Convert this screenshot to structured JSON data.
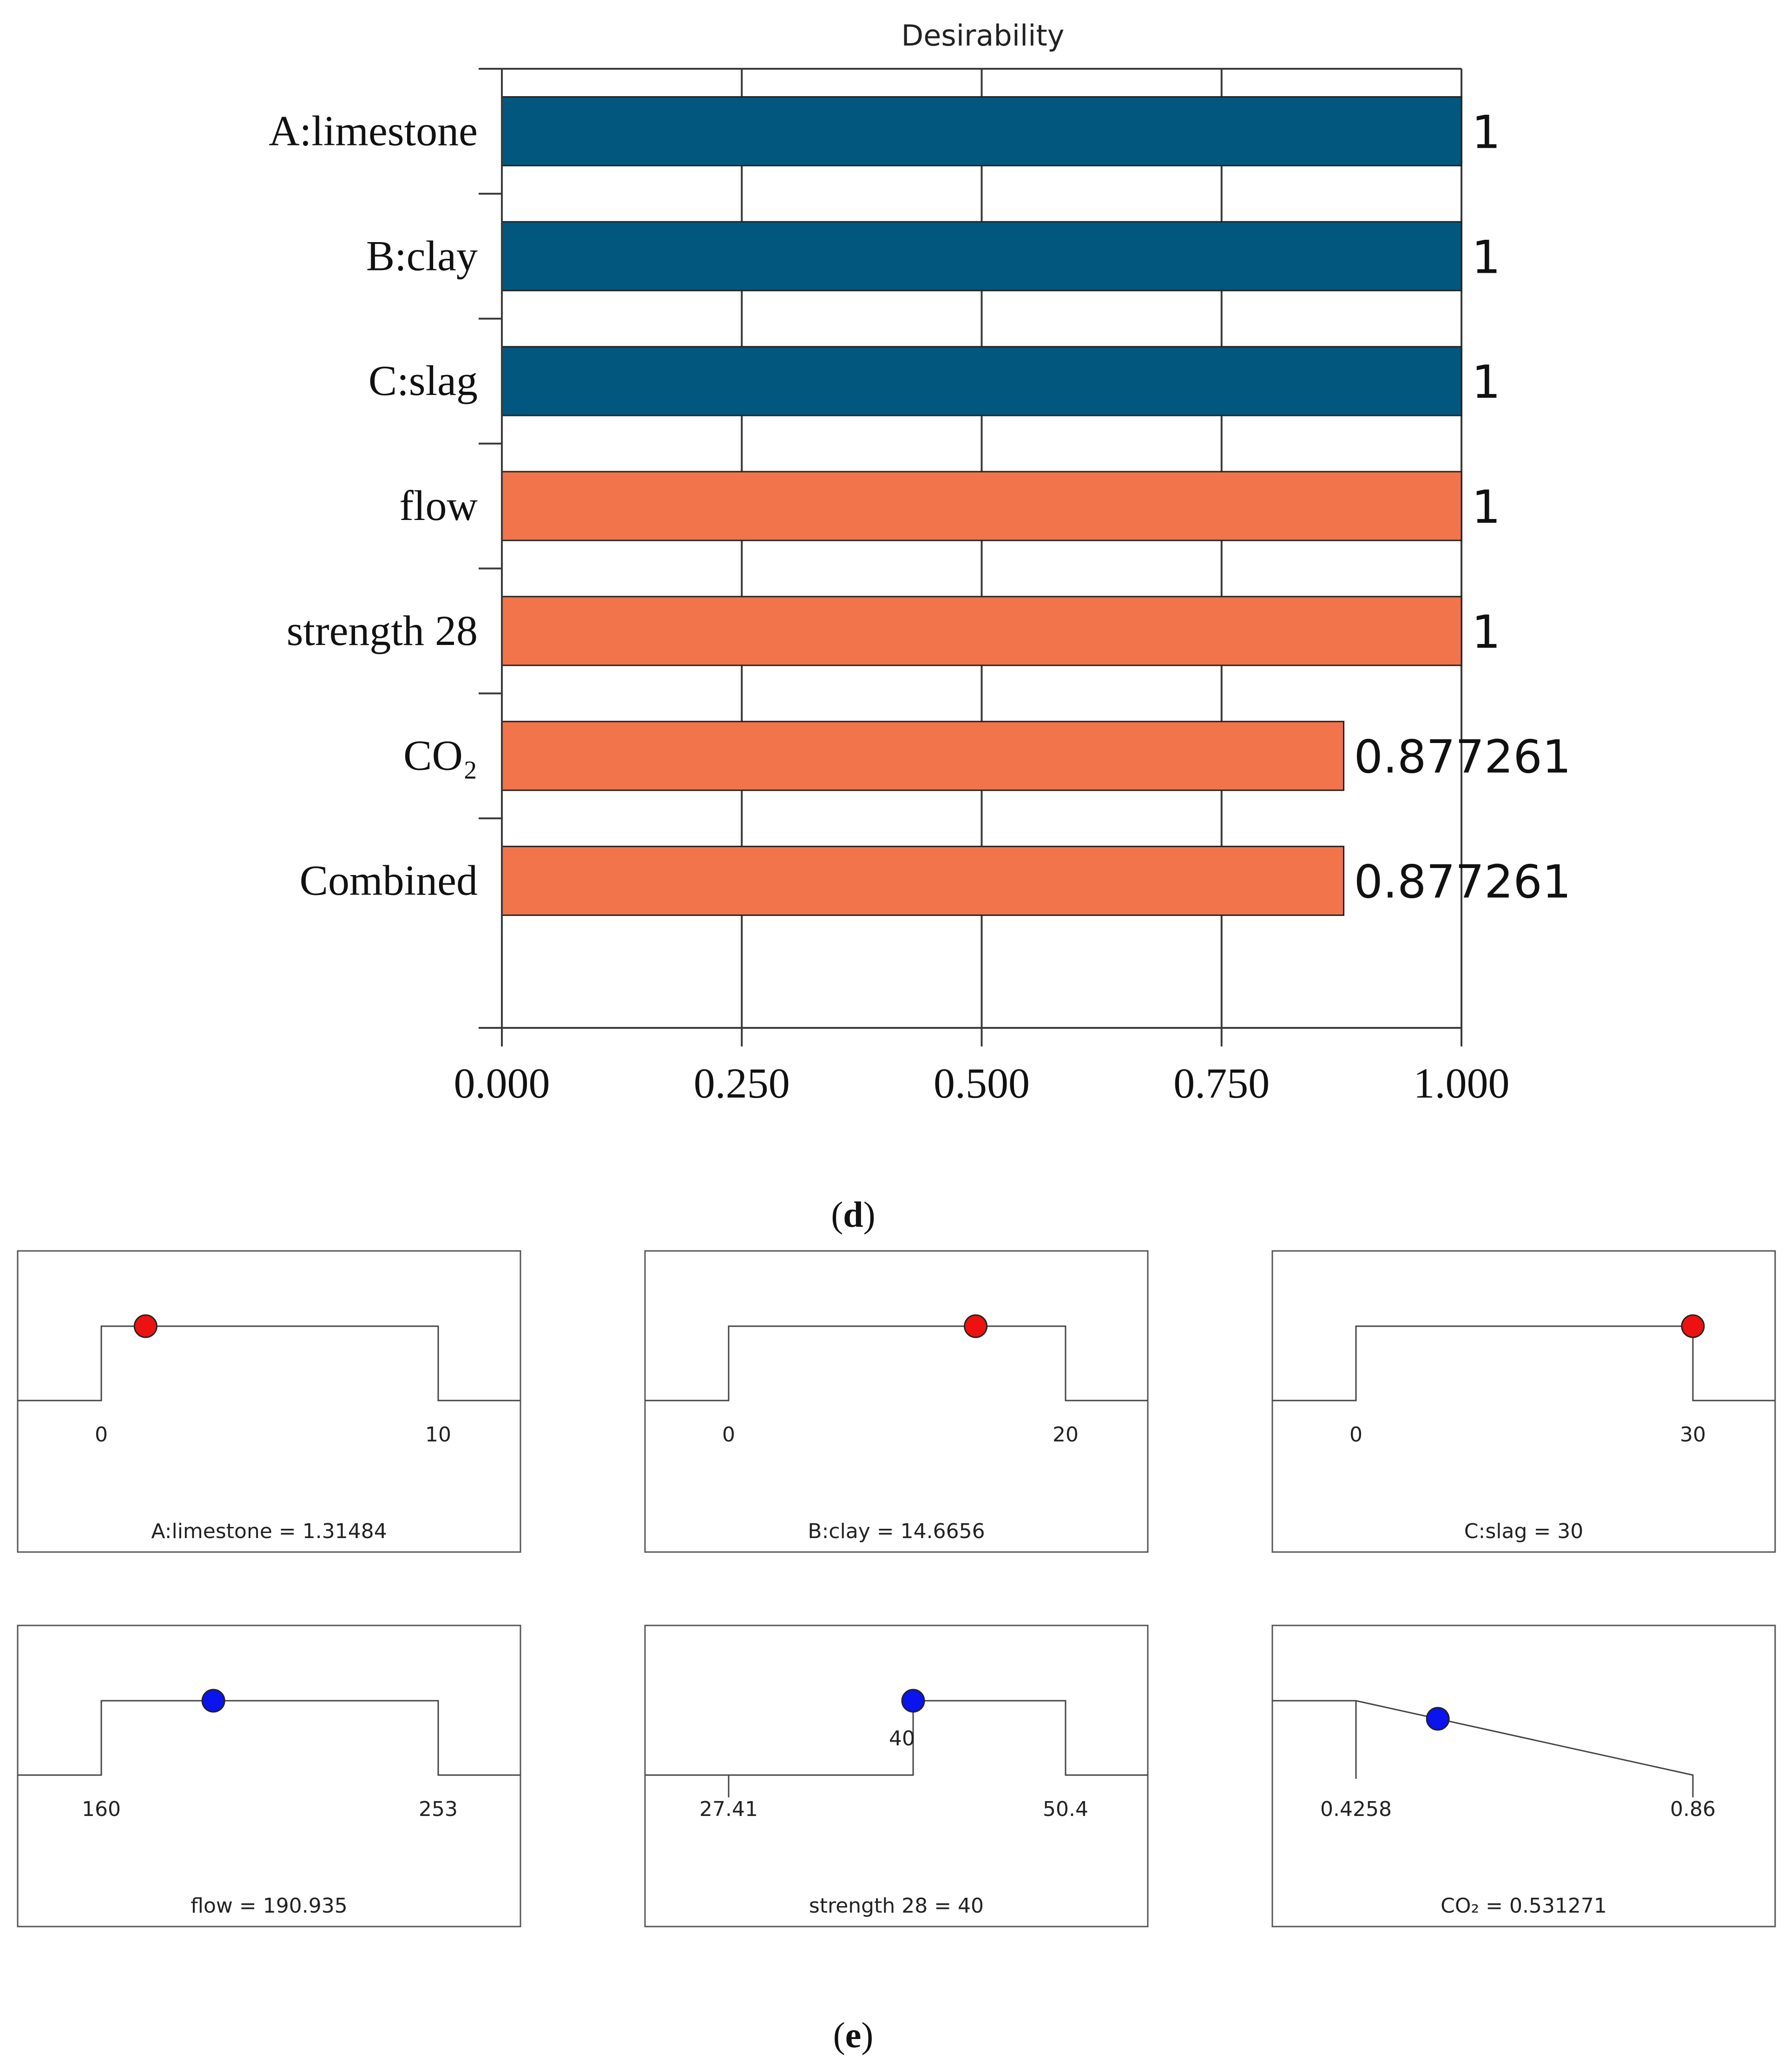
{
  "chart_data": [
    {
      "type": "bar",
      "orientation": "horizontal",
      "title": "Desirability",
      "categories": [
        "A:limestone",
        "B:clay",
        "C:slag",
        "flow",
        "strength 28",
        "CO₂",
        "Combined"
      ],
      "values": [
        1,
        1,
        1,
        1,
        1,
        0.877261,
        0.877261
      ],
      "value_labels": [
        "1",
        "1",
        "1",
        "1",
        "1",
        "0.877261",
        "0.877261"
      ],
      "bar_colors": [
        "#02577f",
        "#02577f",
        "#02577f",
        "#f2744a",
        "#f2744a",
        "#f2744a",
        "#f2744a"
      ],
      "xlim": [
        0,
        1
      ],
      "xticks": [
        "0.000",
        "0.250",
        "0.500",
        "0.750",
        "1.000"
      ],
      "grid": true,
      "panel_label": "(d)"
    },
    {
      "type": "line",
      "subtype": "desirability ramps",
      "panel_label": "(e)",
      "panels": [
        {
          "name": "A:limestone",
          "caption": "A:limestone = 1.31484",
          "kind": "range",
          "low": 0,
          "high": 10,
          "low_label": "0",
          "high_label": "10",
          "value": 1.31484,
          "dot_color": "#ee1111"
        },
        {
          "name": "B:clay",
          "caption": "B:clay = 14.6656",
          "kind": "range",
          "low": 0,
          "high": 20,
          "low_label": "0",
          "high_label": "20",
          "value": 14.6656,
          "dot_color": "#ee1111"
        },
        {
          "name": "C:slag",
          "caption": "C:slag = 30",
          "kind": "range",
          "low": 0,
          "high": 30,
          "low_label": "0",
          "high_label": "30",
          "value": 30,
          "dot_color": "#ee1111"
        },
        {
          "name": "flow",
          "caption": "flow = 190.935",
          "kind": "range",
          "low": 160,
          "high": 253,
          "low_label": "160",
          "high_label": "253",
          "value": 190.935,
          "dot_color": "#0a14ee"
        },
        {
          "name": "strength 28",
          "caption": "strength 28 = 40",
          "kind": "target",
          "low": 27.41,
          "high": 50.4,
          "target": 40,
          "low_label": "27.41",
          "high_label": "50.4",
          "target_label": "40",
          "value": 40,
          "dot_color": "#0a14ee"
        },
        {
          "name": "CO₂",
          "caption": "CO₂ = 0.531271",
          "kind": "minimize",
          "low": 0.4258,
          "high": 0.86,
          "low_label": "0.4258",
          "high_label": "0.86",
          "value": 0.531271,
          "dot_color": "#0a14ee"
        }
      ]
    }
  ]
}
